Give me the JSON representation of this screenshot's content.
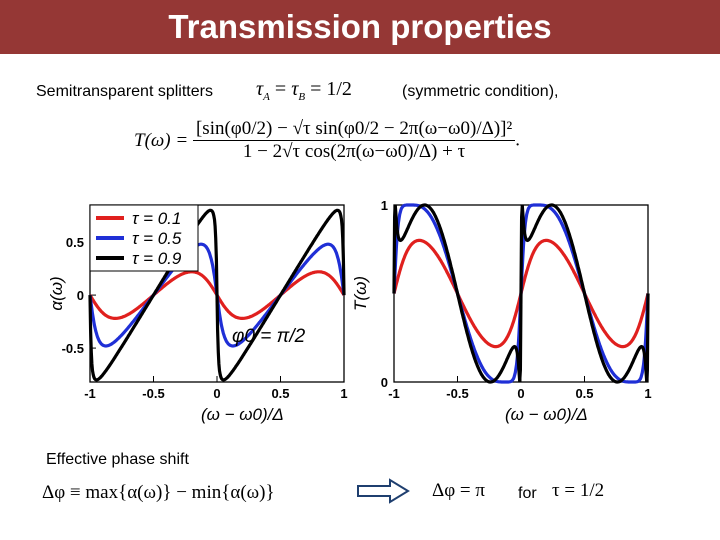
{
  "slide": {
    "title": "Transmission properties",
    "intro_text": "Semitransparent splitters",
    "condition_text": "(symmetric condition),",
    "effective_label": "Effective phase shift",
    "for_text": "for"
  },
  "equations": {
    "tau_equal": [
      "τ",
      "A",
      "=",
      "τ",
      "B",
      "=",
      "1/2"
    ],
    "transmission_lhs": "T(ω) =",
    "transmission_num": "[sin(φ0/2) − √τ sin(φ0/2 − 2π(ω−ω0)/Δ)]²",
    "transmission_den": "1 − 2√τ cos(2π(ω−ω0)/Δ) + τ",
    "delta_phi_def": "Δφ ≡ max{α(ω)} − min{α(ω)}",
    "delta_phi_result": "Δφ = π",
    "tau_half": "τ = 1/2",
    "phi0_annotation": "φ0 = π/2"
  },
  "colors": {
    "title_bg": "#953735",
    "red": "#e0201e",
    "blue": "#1f2fd6",
    "black": "#000000",
    "arrow": "#1f3f6f"
  },
  "chart_data": [
    {
      "type": "line",
      "xlabel": "(ω − ω0)/Δ",
      "ylabel": "α(ω)",
      "xlim": [
        -1,
        1
      ],
      "ylim": [
        -0.82,
        0.85
      ],
      "xticks": [
        "-1",
        "-0.5",
        "0",
        "0.5",
        "1"
      ],
      "yticks": [
        "0.5",
        "0",
        "-0.5"
      ],
      "legend": "top-left",
      "annotation": "φ0 = π/2",
      "series": [
        {
          "name": "τ = 0.1",
          "color": "red",
          "tau": 0.1
        },
        {
          "name": "τ = 0.5",
          "color": "blue",
          "tau": 0.5
        },
        {
          "name": "τ = 0.9",
          "color": "black",
          "tau": 0.9
        }
      ]
    },
    {
      "type": "line",
      "xlabel": "(ω − ω0)/Δ",
      "ylabel": "T(ω)",
      "xlim": [
        -1,
        1
      ],
      "ylim": [
        0,
        1
      ],
      "xticks": [
        "-1",
        "-0.5",
        "0",
        "0.5",
        "1"
      ],
      "yticks": [
        "1",
        "0"
      ],
      "series": [
        {
          "name": "τ = 0.1",
          "color": "red",
          "tau": 0.1
        },
        {
          "name": "τ = 0.5",
          "color": "blue",
          "tau": 0.5
        },
        {
          "name": "τ = 0.9",
          "color": "black",
          "tau": 0.9
        }
      ]
    }
  ]
}
